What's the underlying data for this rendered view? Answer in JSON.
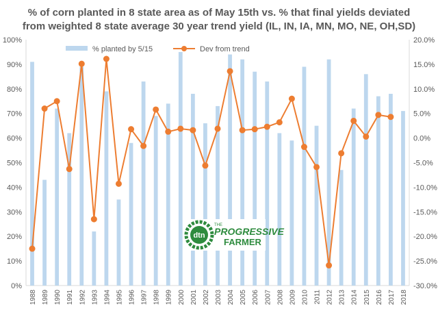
{
  "chart_data": {
    "type": "bar",
    "title_lines": [
      "%  of corn planted in 8 state area as of May 15th vs. % that final yields deviated",
      "from weighted 8 state average 30 year trend yield (IL, IN, IA, MN, MO, NE, OH,SD)"
    ],
    "categories": [
      "1988",
      "1989",
      "1990",
      "1991",
      "1992",
      "1993",
      "1994",
      "1995",
      "1996",
      "1997",
      "1998",
      "1999",
      "2000",
      "2001",
      "2002",
      "2003",
      "2004",
      "2005",
      "2006",
      "2007",
      "2008",
      "2009",
      "2010",
      "2011",
      "2012",
      "2013",
      "2014",
      "2015",
      "2016",
      "2017",
      "2018"
    ],
    "series": [
      {
        "name": "% planted by 5/15",
        "type": "bar",
        "axis": "left",
        "color": "#bdd7ee",
        "values": [
          91,
          43,
          72,
          62,
          89,
          22,
          79,
          35,
          58,
          83,
          69,
          74,
          95,
          78,
          66,
          73,
          94,
          92,
          87,
          83,
          62,
          59,
          89,
          65,
          92,
          47,
          72,
          86,
          77,
          78,
          71
        ]
      },
      {
        "name": "Dev from trend",
        "type": "line",
        "axis": "right",
        "color": "#ed7d31",
        "values": [
          -22.5,
          6.0,
          7.5,
          -6.3,
          15.1,
          -16.5,
          16.1,
          -9.3,
          1.8,
          -1.6,
          5.8,
          1.3,
          1.9,
          1.6,
          -5.6,
          1.9,
          13.6,
          1.6,
          1.8,
          2.3,
          3.2,
          8.0,
          -1.8,
          -5.9,
          -25.9,
          -3.1,
          3.5,
          0.3,
          4.7,
          4.3,
          null
        ]
      }
    ],
    "left_axis": {
      "min": 0,
      "max": 100,
      "step": 10,
      "ticks": [
        "0%",
        "10%",
        "20%",
        "30%",
        "40%",
        "50%",
        "60%",
        "70%",
        "80%",
        "90%",
        "100%"
      ]
    },
    "right_axis": {
      "min": -30,
      "max": 20,
      "step": 5,
      "ticks": [
        "-30.0%",
        "-25.0%",
        "-20.0%",
        "-15.0%",
        "-10.0%",
        "-5.0%",
        "0.0%",
        "5.0%",
        "10.0%",
        "15.0%",
        "20.0%"
      ]
    },
    "grid": false,
    "legend_position": "top-left"
  },
  "logo": {
    "badge_text": "dtn",
    "brand_top": "THE",
    "brand_line1": "PROGRESSIVE",
    "brand_line2": "FARMER"
  },
  "colors": {
    "bar": "#bdd7ee",
    "line": "#ed7d31",
    "text": "#595959",
    "axis": "#d9d9d9",
    "logo_green": "#2e8b3e"
  }
}
